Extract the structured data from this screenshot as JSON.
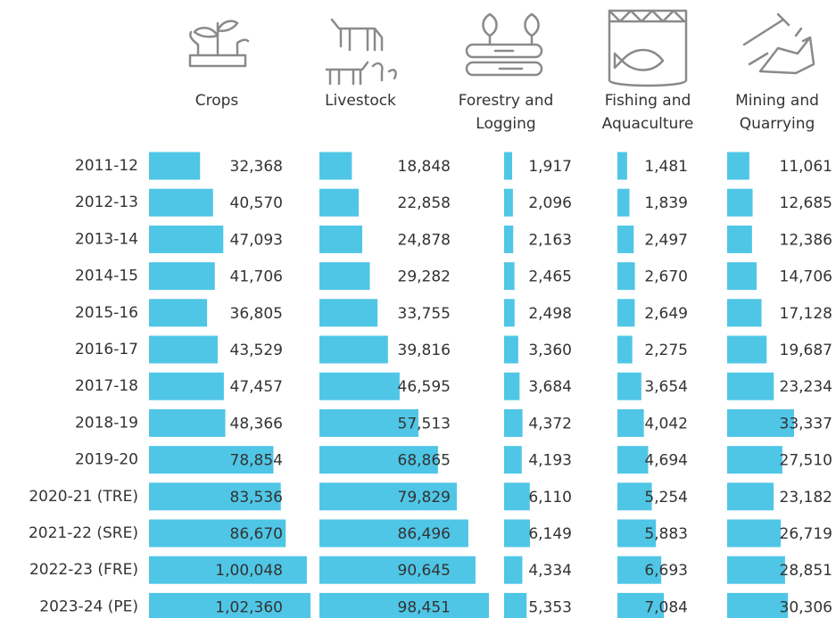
{
  "chart_data": {
    "type": "bar",
    "orientation": "horizontal",
    "color": "#4fc6e6",
    "categories": [
      "2011-12",
      "2012-13",
      "2013-14",
      "2014-15",
      "2015-16",
      "2016-17",
      "2017-18",
      "2018-19",
      "2019-20",
      "2020-21 (TRE)",
      "2021-22 (SRE)",
      "2022-23 (FRE)",
      "2023-24 (PE)"
    ],
    "series": [
      {
        "name": "Crops",
        "values": [
          32368,
          40570,
          47093,
          41706,
          36805,
          43529,
          47457,
          48366,
          78854,
          83536,
          86670,
          100048,
          102360
        ],
        "value_labels": [
          "32,368",
          "40,570",
          "47,093",
          "41,706",
          "36,805",
          "43,529",
          "47,457",
          "48,366",
          "78,854",
          "83,536",
          "86,670",
          "1,00,048",
          "1,02,360"
        ]
      },
      {
        "name": "Livestock",
        "values": [
          18848,
          22858,
          24878,
          29282,
          33755,
          39816,
          46595,
          57513,
          68865,
          79829,
          86496,
          90645,
          98451
        ],
        "value_labels": [
          "18,848",
          "22,858",
          "24,878",
          "29,282",
          "33,755",
          "39,816",
          "46,595",
          "57,513",
          "68,865",
          "79,829",
          "86,496",
          "90,645",
          "98,451"
        ]
      },
      {
        "name": "Forestry and Logging",
        "values": [
          1917,
          2096,
          2163,
          2465,
          2498,
          3360,
          3684,
          4372,
          4193,
          6110,
          6149,
          4334,
          5353
        ],
        "value_labels": [
          "1,917",
          "2,096",
          "2,163",
          "2,465",
          "2,498",
          "3,360",
          "3,684",
          "4,372",
          "4,193",
          "6,110",
          "6,149",
          "4,334",
          "5,353"
        ]
      },
      {
        "name": "Fishing and Aquaculture",
        "values": [
          1481,
          1839,
          2497,
          2670,
          2649,
          2275,
          3654,
          4042,
          4694,
          5254,
          5883,
          6693,
          7084
        ],
        "value_labels": [
          "1,481",
          "1,839",
          "2,497",
          "2,670",
          "2,649",
          "2,275",
          "3,654",
          "4,042",
          "4,694",
          "5,254",
          "5,883",
          "6,693",
          "7,084"
        ]
      },
      {
        "name": "Mining and Quarrying",
        "values": [
          11061,
          12685,
          12386,
          14706,
          17128,
          19687,
          23234,
          33337,
          27510,
          23182,
          26719,
          28851,
          30306
        ],
        "value_labels": [
          "11,061",
          "12,685",
          "12,386",
          "14,706",
          "17,128",
          "19,687",
          "23,234",
          "33,337",
          "27,510",
          "23,182",
          "26,719",
          "28,851",
          "30,306"
        ]
      }
    ]
  }
}
